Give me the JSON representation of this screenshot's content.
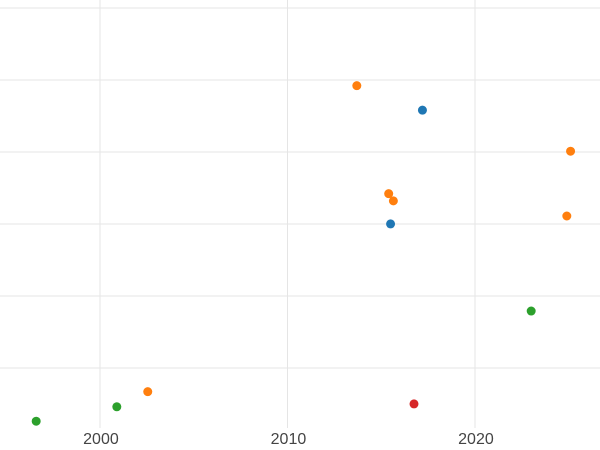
{
  "chart_data": {
    "type": "scatter",
    "x_tick_labels": [
      "2000",
      "2010",
      "2020"
    ],
    "x_tick_values": [
      2000,
      2010,
      2020
    ],
    "xlim": [
      1994.67,
      2026.67
    ],
    "ylim": [
      -0.14,
      6.11
    ],
    "y_gridline_values": [
      1,
      2,
      3,
      4,
      5,
      6
    ],
    "grid": true,
    "legend": "none",
    "background_color": "#ffffff",
    "gridline_color": "#e5e5e5",
    "tick_label_color": "#444444",
    "tick_font_size_px": 16,
    "point_radius": 4.5,
    "series": [
      {
        "name": "orange-series",
        "color": "#ff7f0e",
        "points": [
          [
            2013.7,
            4.92
          ],
          [
            2015.4,
            3.42
          ],
          [
            2015.65,
            3.32
          ],
          [
            2025.1,
            4.01
          ],
          [
            2024.9,
            3.11
          ],
          [
            2002.55,
            0.67
          ]
        ]
      },
      {
        "name": "blue-series",
        "color": "#1f77b4",
        "points": [
          [
            2017.2,
            4.58
          ],
          [
            2015.5,
            3.0
          ]
        ]
      },
      {
        "name": "green-series",
        "color": "#2ca02c",
        "points": [
          [
            2023.0,
            1.79
          ],
          [
            2000.9,
            0.46
          ],
          [
            1996.6,
            0.26
          ]
        ]
      },
      {
        "name": "red-series",
        "color": "#d62728",
        "points": [
          [
            2016.75,
            0.5
          ]
        ]
      }
    ]
  }
}
